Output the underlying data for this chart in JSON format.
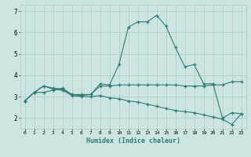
{
  "xlabel": "Humidex (Indice chaleur)",
  "x": [
    0,
    1,
    2,
    3,
    4,
    5,
    6,
    7,
    8,
    9,
    10,
    11,
    12,
    13,
    14,
    15,
    16,
    17,
    18,
    19,
    20,
    21,
    22,
    23
  ],
  "line1": [
    2.8,
    3.2,
    3.2,
    3.3,
    3.4,
    3.1,
    3.05,
    3.1,
    3.6,
    3.55,
    4.5,
    6.25,
    6.5,
    6.5,
    6.8,
    6.3,
    5.3,
    4.4,
    4.5,
    3.6,
    3.6,
    2.0,
    2.25,
    2.2
  ],
  "line2": [
    2.8,
    3.2,
    3.5,
    3.4,
    3.35,
    3.1,
    3.1,
    3.1,
    3.5,
    3.5,
    3.55,
    3.55,
    3.55,
    3.55,
    3.55,
    3.55,
    3.55,
    3.5,
    3.5,
    3.5,
    3.55,
    3.55,
    3.7,
    3.7
  ],
  "line3": [
    2.8,
    3.2,
    3.5,
    3.35,
    3.3,
    3.05,
    3.0,
    3.0,
    3.05,
    2.95,
    2.9,
    2.8,
    2.75,
    2.65,
    2.55,
    2.45,
    2.35,
    2.3,
    2.25,
    2.15,
    2.05,
    1.95,
    1.7,
    2.2
  ],
  "color": "#2e7d6e",
  "bg_color": "#cce5e3",
  "grid_color": "#aacbc8",
  "ylim": [
    1.5,
    7.3
  ],
  "xlim": [
    -0.5,
    23.5
  ],
  "yticks": [
    2,
    3,
    4,
    5,
    6,
    7
  ]
}
